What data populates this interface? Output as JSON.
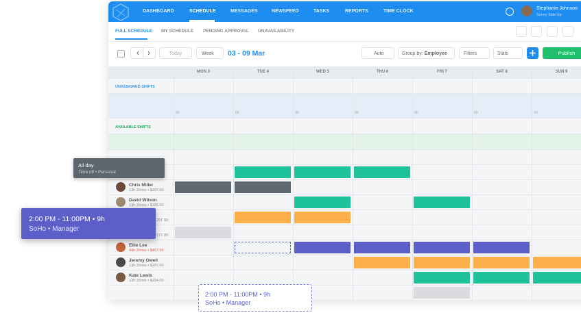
{
  "nav": {
    "items": [
      "DASHBOARD",
      "SCHEDULE",
      "MESSAGES",
      "NEWSFEED",
      "TASKS",
      "REPORTS",
      "TIME CLOCK"
    ],
    "user_name": "Stephanie Johnson",
    "user_company": "Sunny Side Up"
  },
  "tabs": [
    "FULL SCHEDULE",
    "MY SCHEDULE",
    "PENDING APPROVAL",
    "UNAVAILABILITY"
  ],
  "toolbar": {
    "today": "Today",
    "view": "Week",
    "date_range": "03 - 09 Mar",
    "auto": "Auto",
    "group_by_label": "Group by:",
    "group_by_value": "Employee",
    "filters": "Filters",
    "stats": "Stats",
    "publish": "Publish"
  },
  "days": [
    "MON 3",
    "TUE 4",
    "WED 5",
    "THU 6",
    "FRI 7",
    "SAT 8",
    "SUN 9"
  ],
  "unassigned": {
    "label": "UNASSIGNED SHIFTS",
    "hours": [
      "0h",
      "0h",
      "0h",
      "0h",
      "0h",
      "0h",
      "0h"
    ]
  },
  "available": {
    "label": "AVAILABLE SHIFTS"
  },
  "employees": [
    {
      "name": "Chris Miller",
      "info": "13h 30min • $297.00"
    },
    {
      "name": "David Wilson",
      "info": "13h 30min • $185.00"
    },
    {
      "name": "Ellie Lee",
      "info": "44h 30min • $467.50"
    },
    {
      "name": "Jeremy Owell",
      "info": "13h 30min • $297.00"
    },
    {
      "name": "Kate Lewis",
      "info": "13h 30min • $234.00"
    }
  ],
  "partial_info": [
    "297.00",
    "177.00"
  ],
  "popups": {
    "time_off": {
      "title": "All day",
      "detail": "Time off • Personal"
    },
    "shift": {
      "time": "2:00 PM - 11:00PM • 9h",
      "place": "SoHo • Manager"
    },
    "draft": {
      "time": "2:00 PM - 11:00PM • 9h",
      "place": "SoHo • Manager"
    }
  }
}
